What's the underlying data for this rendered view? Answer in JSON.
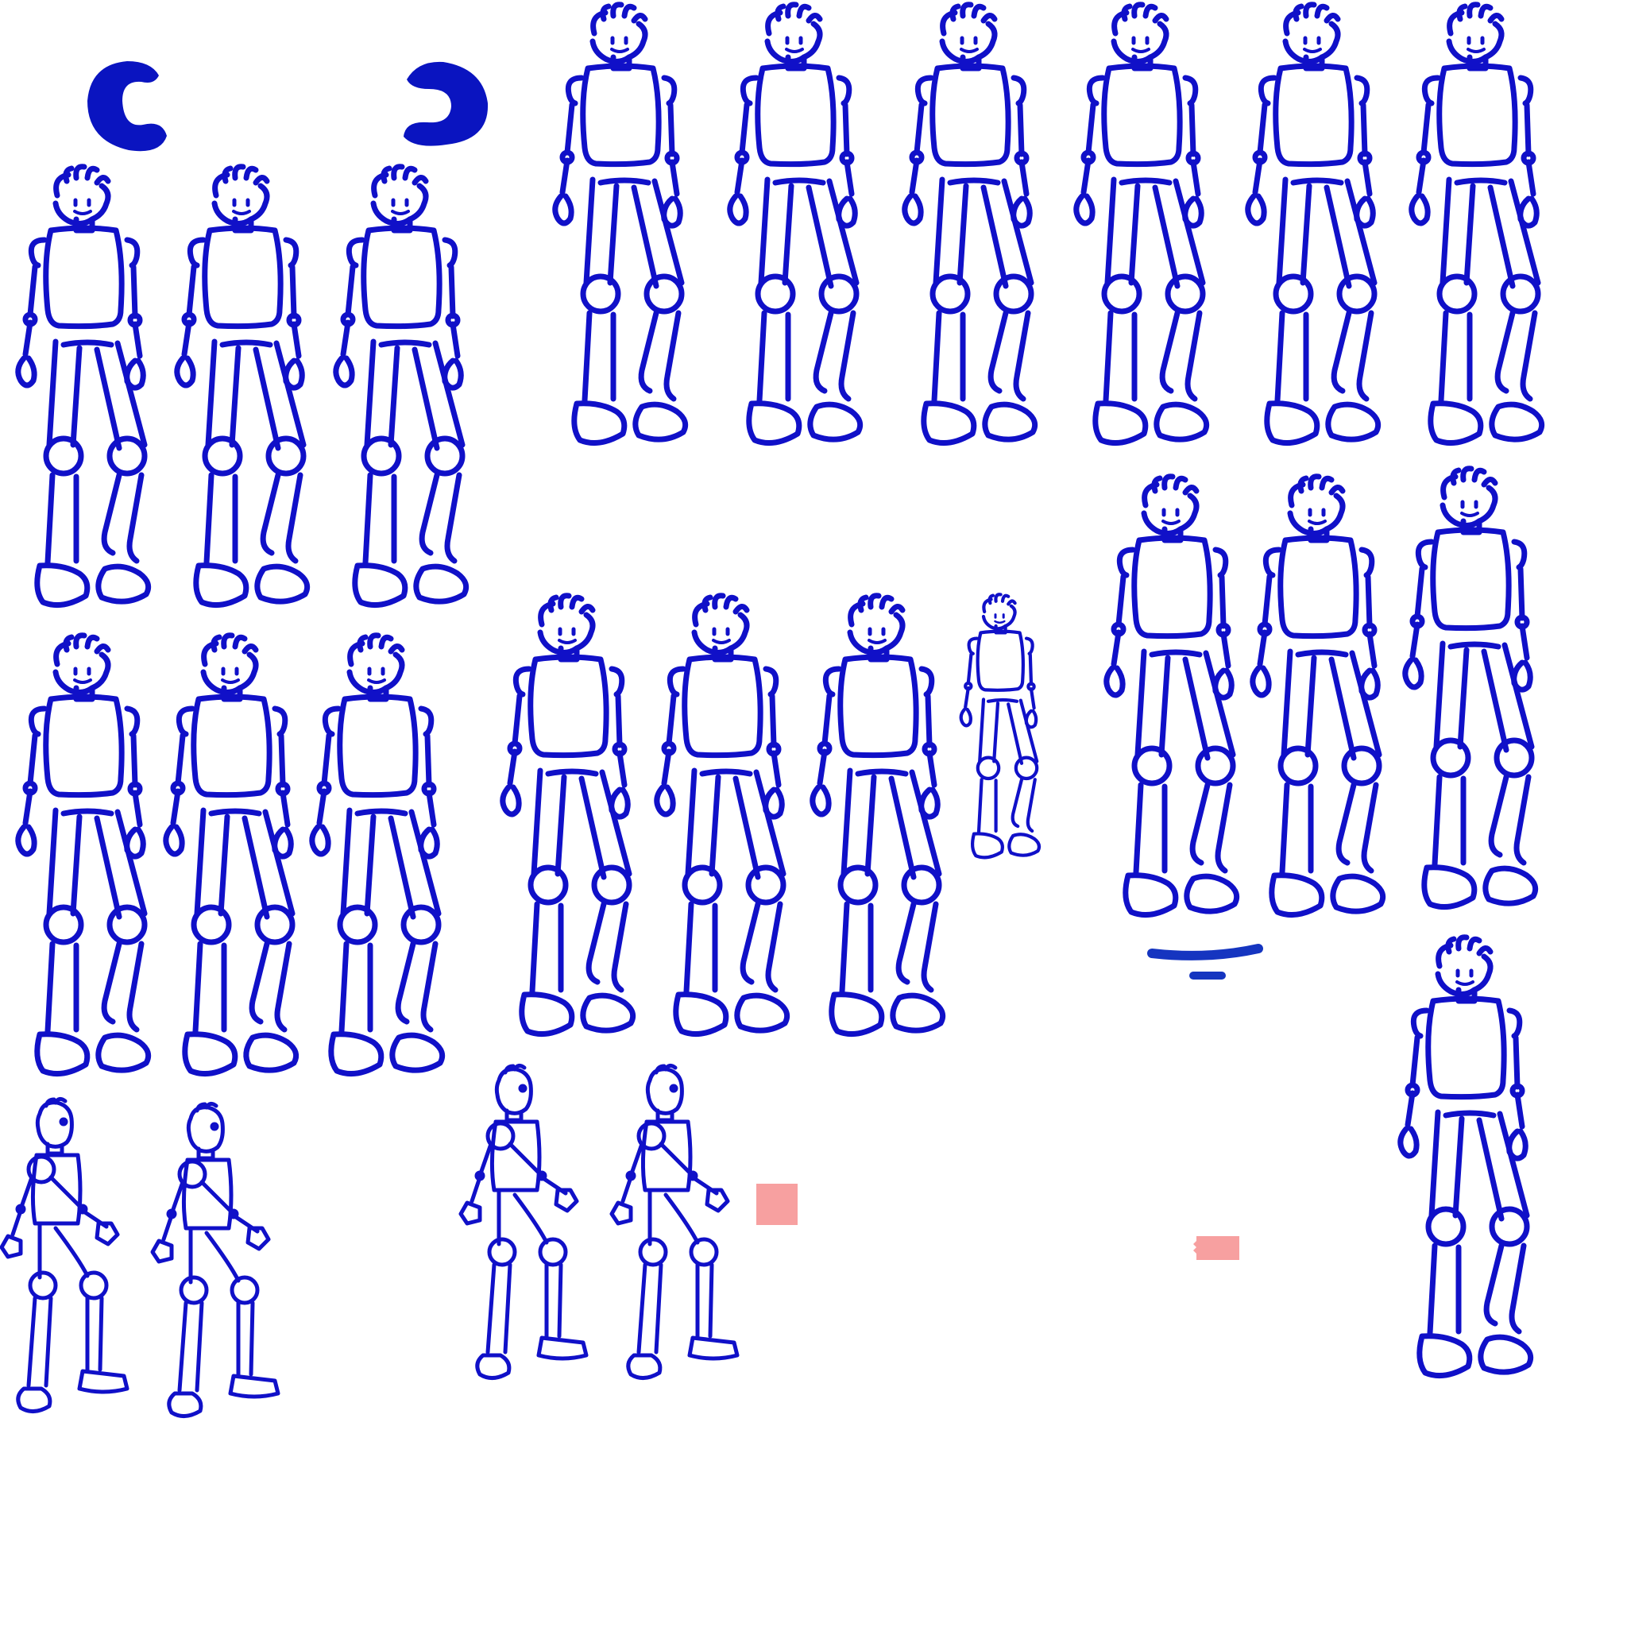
{
  "sheet": {
    "title": "",
    "background": "#ffffff",
    "ink_color": "#1010c8",
    "glyph_color": "#0a14c0",
    "shadow_color": "#1535c0",
    "marker_color": "#f7a0a0"
  },
  "sprites": {
    "front_walk_row_top": {
      "label": "",
      "frame_count": 6
    },
    "front_walk_left_group": {
      "label": "",
      "frame_count": 3
    },
    "front_walk_mid_left_group": {
      "label": "",
      "frame_count": 3
    },
    "front_walk_center_group": {
      "label": "",
      "frame_count": 3
    },
    "front_small_idle": {
      "label": "",
      "frame_count": 1
    },
    "front_walk_right_group": {
      "label": "",
      "frame_count": 3
    },
    "front_large_single": {
      "label": "",
      "frame_count": 1
    },
    "side_walk_left": {
      "label": "",
      "frame_count": 2
    },
    "side_walk_center": {
      "label": "",
      "frame_count": 2
    }
  },
  "glyphs": [
    {
      "name": "c-shape-left",
      "shape": "open-left"
    },
    {
      "name": "c-shape-right",
      "shape": "open-right"
    }
  ],
  "markers": [
    {
      "name": "pink-square-marker"
    },
    {
      "name": "pink-rect-marker"
    }
  ]
}
